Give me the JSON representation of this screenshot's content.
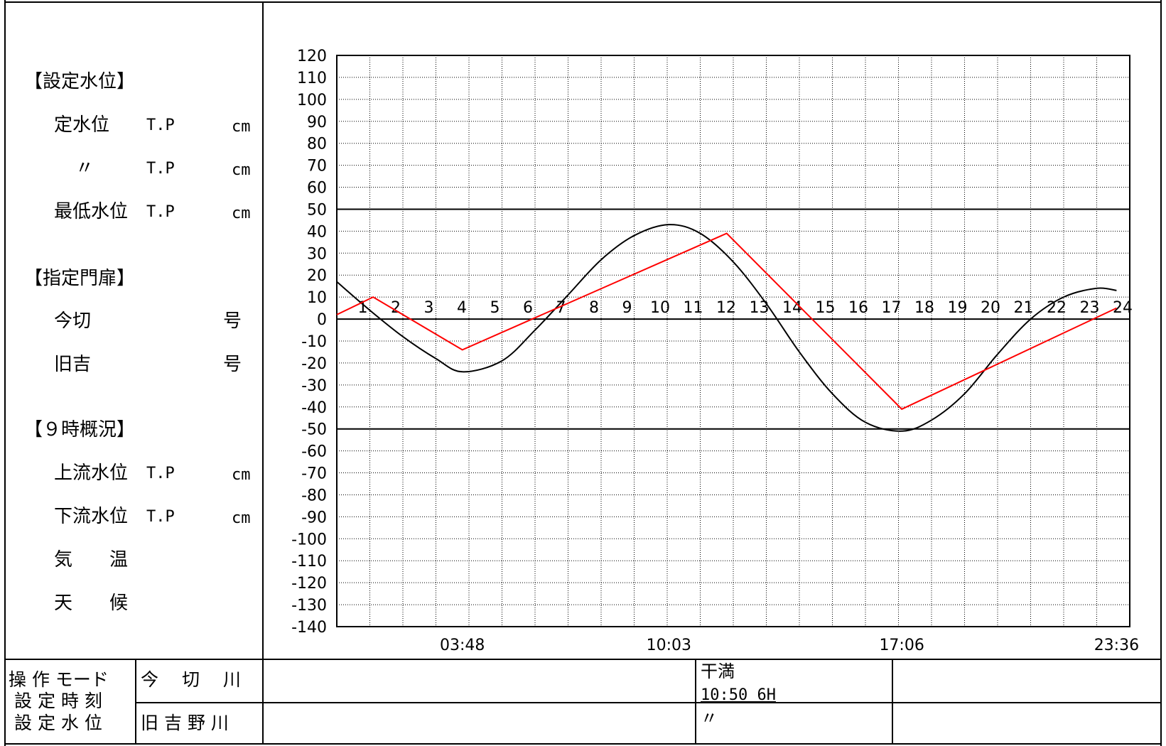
{
  "side_panel": {
    "settings_header": "【設定水位】",
    "rows_settings": [
      {
        "label": "定水位",
        "tp": "T.P",
        "unit": "cm"
      },
      {
        "label": "〃",
        "tp": "T.P",
        "unit": "cm"
      },
      {
        "label": "最低水位",
        "tp": "T.P",
        "unit": "cm"
      }
    ],
    "gate_header": "【指定門扉】",
    "rows_gate": [
      {
        "label": "今切",
        "unit": "号"
      },
      {
        "label": "旧吉",
        "unit": "号"
      }
    ],
    "status_header": "【９時概況】",
    "rows_status": [
      {
        "label": "上流水位",
        "tp": "T.P",
        "unit": "cm"
      },
      {
        "label": "下流水位",
        "tp": "T.P",
        "unit": "cm"
      },
      {
        "label": "気　　温"
      },
      {
        "label": "天　　候"
      }
    ]
  },
  "bottom_table": {
    "left_labels": [
      "操 作 モード",
      "設 定 時 刻",
      "設 定 水 位"
    ],
    "river_1": "今　 切　 川",
    "river_2": "旧 吉 野 川",
    "tide_label": "干満",
    "tide_value": "10:50 6H",
    "ditto": "〃"
  },
  "colors": {
    "tide_curve": "#000000",
    "setting_line": "#ff0000"
  },
  "chart_data": {
    "type": "line",
    "ylim": [
      -140,
      120
    ],
    "yticks": [
      120,
      110,
      100,
      90,
      80,
      70,
      60,
      50,
      40,
      30,
      20,
      10,
      0,
      -10,
      -20,
      -30,
      -40,
      -50,
      -60,
      -70,
      -80,
      -90,
      -100,
      -110,
      -120,
      -130,
      -140
    ],
    "hour_labels": [
      "1",
      "2",
      "3",
      "4",
      "5",
      "6",
      "7",
      "8",
      "9",
      "10",
      "11",
      "12",
      "13",
      "14",
      "15",
      "16",
      "17",
      "18",
      "19",
      "20",
      "21",
      "22",
      "23",
      "24"
    ],
    "time_labels": [
      {
        "text": "03:48",
        "hour": 3.8
      },
      {
        "text": "10:03",
        "hour": 10.05
      },
      {
        "text": "17:06",
        "hour": 17.1
      },
      {
        "text": "23:36",
        "hour": 23.6
      }
    ],
    "reference_lines": [
      50,
      0,
      -50
    ],
    "grid": true,
    "series": [
      {
        "x": [
          0,
          1,
          2,
          3,
          3.8,
          5,
          6,
          7,
          8,
          9,
          10.05,
          11,
          12,
          13,
          14,
          15,
          16,
          17.1,
          18,
          19,
          20,
          21,
          22,
          23,
          23.6
        ],
        "y": [
          17,
          4,
          -8,
          -18,
          -24,
          -19,
          -5,
          11,
          27,
          38,
          43,
          39,
          26,
          7,
          -15,
          -34,
          -47,
          -51,
          -46,
          -34,
          -16,
          0,
          10,
          14,
          13
        ],
        "color": "#000000"
      },
      {
        "x": [
          0,
          1.1,
          3.8,
          11.8,
          17.1,
          23.6
        ],
        "y": [
          2,
          10,
          -14,
          39,
          -41,
          5
        ],
        "color": "#ff0000"
      }
    ]
  }
}
